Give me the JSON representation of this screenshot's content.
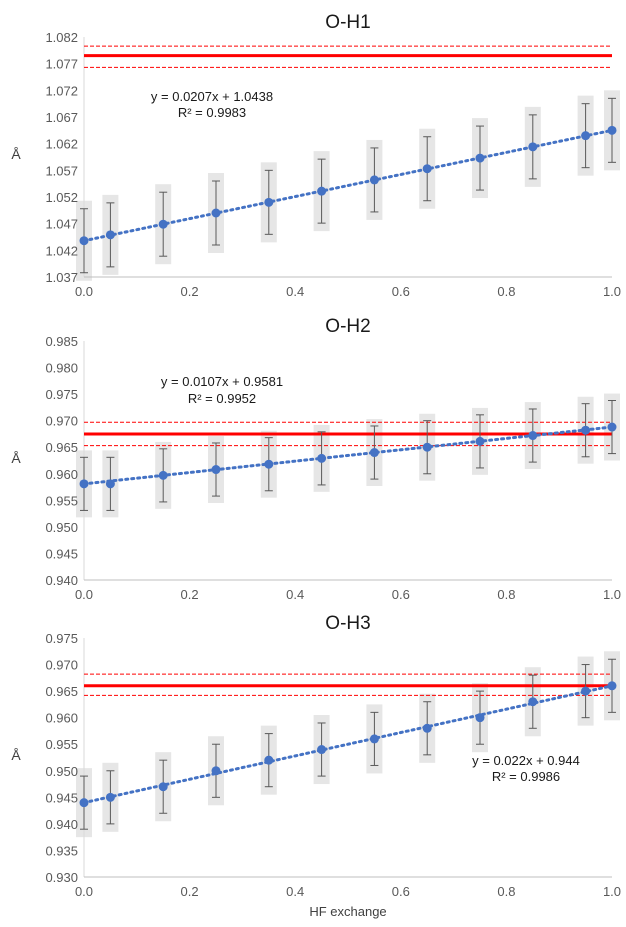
{
  "figure": {
    "xlabel": "HF exchange"
  },
  "chart_data": [
    {
      "type": "scatter",
      "title": "O-H1",
      "ylabel": "Å",
      "xlim": [
        0,
        1
      ],
      "ylim": [
        1.037,
        1.082
      ],
      "xticks": [
        "0.0",
        "0.2",
        "0.4",
        "0.6",
        "0.8",
        "1.0"
      ],
      "yticks": [
        "1.037",
        "1.042",
        "1.047",
        "1.052",
        "1.057",
        "1.062",
        "1.067",
        "1.072",
        "1.077",
        "1.082"
      ],
      "x": [
        0.0,
        0.05,
        0.15,
        0.25,
        0.35,
        0.45,
        0.55,
        0.65,
        0.75,
        0.85,
        0.95,
        1.0
      ],
      "y": [
        1.0438,
        1.0449,
        1.0469,
        1.049,
        1.051,
        1.0531,
        1.0552,
        1.0573,
        1.0593,
        1.0614,
        1.0635,
        1.0645
      ],
      "error": 0.006,
      "band": 0.0075,
      "reference": {
        "value": 1.0785,
        "lower": 1.0763,
        "upper": 1.0803
      },
      "trendline": {
        "slope": 0.0207,
        "intercept": 1.0438
      },
      "equation": "y = 0.0207x + 1.0438",
      "r2": "R² = 0.9983",
      "colors": {
        "series": "#4472c4",
        "reference": "#ff0000",
        "band": "#e6e6e6",
        "error": "#595959"
      }
    },
    {
      "type": "scatter",
      "title": "O-H2",
      "ylabel": "Å",
      "xlim": [
        0,
        1
      ],
      "ylim": [
        0.94,
        0.985
      ],
      "xticks": [
        "0.0",
        "0.2",
        "0.4",
        "0.6",
        "0.8",
        "1.0"
      ],
      "yticks": [
        "0.940",
        "0.945",
        "0.950",
        "0.955",
        "0.960",
        "0.965",
        "0.970",
        "0.975",
        "0.980",
        "0.985"
      ],
      "x": [
        0.0,
        0.05,
        0.15,
        0.25,
        0.35,
        0.45,
        0.55,
        0.65,
        0.75,
        0.85,
        0.95,
        1.0
      ],
      "y": [
        0.9581,
        0.9581,
        0.9597,
        0.9608,
        0.9618,
        0.9629,
        0.964,
        0.965,
        0.9661,
        0.9672,
        0.9682,
        0.9688
      ],
      "error": 0.005,
      "band": 0.0063,
      "reference": {
        "value": 0.9675,
        "lower": 0.9653,
        "upper": 0.9697
      },
      "trendline": {
        "slope": 0.0107,
        "intercept": 0.9581
      },
      "equation": "y = 0.0107x + 0.9581",
      "r2": "R² = 0.9952",
      "colors": {
        "series": "#4472c4",
        "reference": "#ff0000",
        "band": "#e6e6e6",
        "error": "#595959"
      }
    },
    {
      "type": "scatter",
      "title": "O-H3",
      "ylabel": "Å",
      "xlim": [
        0,
        1
      ],
      "ylim": [
        0.93,
        0.975
      ],
      "xticks": [
        "0.0",
        "0.2",
        "0.4",
        "0.6",
        "0.8",
        "1.0"
      ],
      "yticks": [
        "0.930",
        "0.935",
        "0.940",
        "0.945",
        "0.950",
        "0.955",
        "0.960",
        "0.965",
        "0.970",
        "0.975"
      ],
      "x": [
        0.0,
        0.05,
        0.15,
        0.25,
        0.35,
        0.45,
        0.55,
        0.65,
        0.75,
        0.85,
        0.95,
        1.0
      ],
      "y": [
        0.944,
        0.945,
        0.947,
        0.95,
        0.952,
        0.954,
        0.956,
        0.958,
        0.96,
        0.963,
        0.965,
        0.966
      ],
      "error": 0.005,
      "band": 0.0065,
      "reference": {
        "value": 0.966,
        "lower": 0.9642,
        "upper": 0.9682
      },
      "trendline": {
        "slope": 0.022,
        "intercept": 0.944
      },
      "equation": "y = 0.022x + 0.944",
      "r2": "R² = 0.9986",
      "colors": {
        "series": "#4472c4",
        "reference": "#ff0000",
        "band": "#e6e6e6",
        "error": "#595959"
      }
    }
  ]
}
